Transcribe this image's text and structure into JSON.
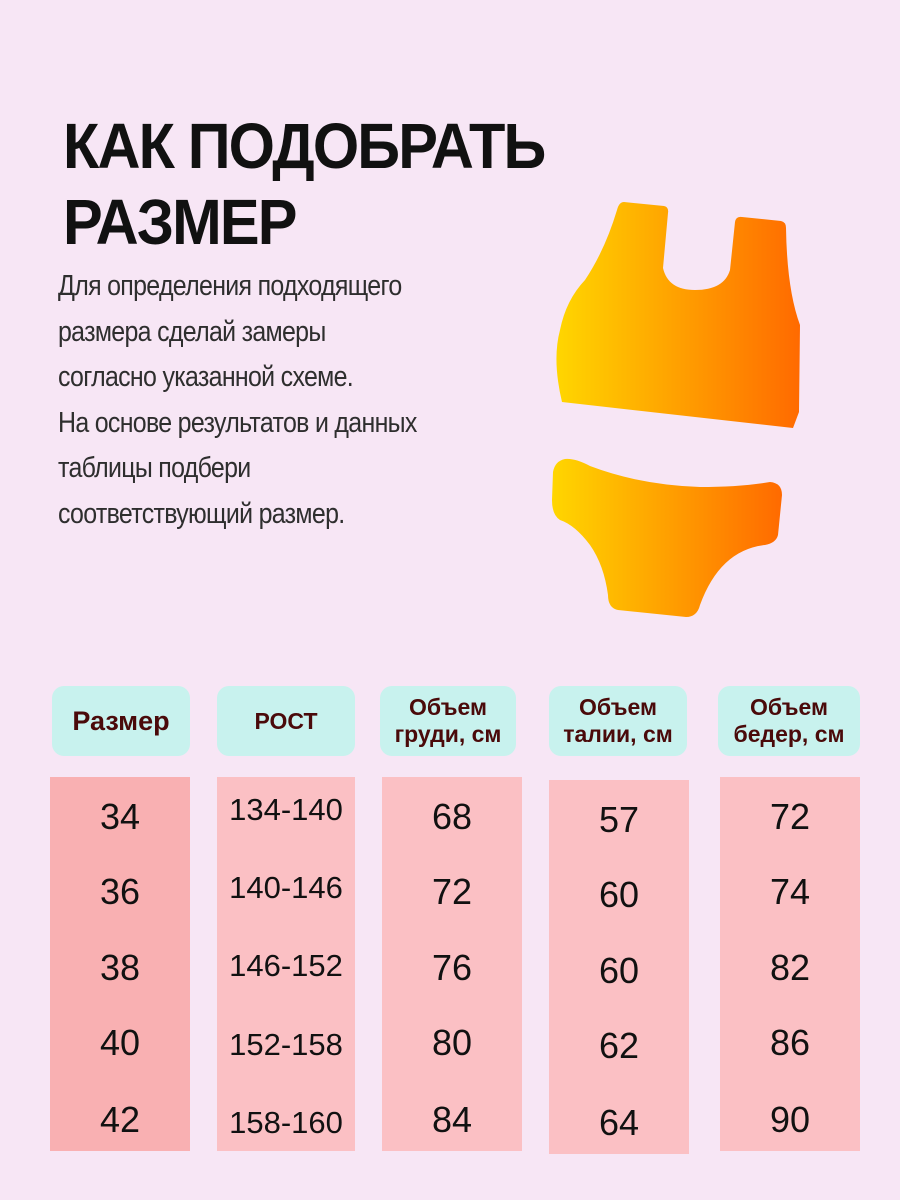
{
  "title": [
    "КАК ПОДОБРАТЬ",
    "РАЗМЕР"
  ],
  "description": [
    "Для определения подходящего",
    "размера сделай замеры",
    "согласно указанной схеме.",
    "На основе результатов и данных",
    "таблицы подбери",
    "соответствующий размер."
  ],
  "illustration": {
    "name": "bikini-icon",
    "gradient": [
      "#ffd600",
      "#ff6a00"
    ]
  },
  "colors": {
    "background": "#f7e6f5",
    "header": "#c8f2ee",
    "size_column": "#f9b0b2",
    "column": "#fbc0c4",
    "header_text": "#4a0a0a"
  },
  "table": {
    "headers": [
      {
        "line1": "Размер",
        "line2": ""
      },
      {
        "line1": "РОСТ",
        "line2": ""
      },
      {
        "line1": "Объем",
        "line2": "груди, см"
      },
      {
        "line1": "Объем",
        "line2": "талии, см"
      },
      {
        "line1": "Объем",
        "line2": "бедер, см"
      }
    ],
    "columns": [
      [
        "34",
        "36",
        "38",
        "40",
        "42"
      ],
      [
        "134-140",
        "140-146",
        "146-152",
        "152-158",
        "158-160"
      ],
      [
        "68",
        "72",
        "76",
        "80",
        "84"
      ],
      [
        "57",
        "60",
        "60",
        "62",
        "64"
      ],
      [
        "72",
        "74",
        "82",
        "86",
        "90"
      ]
    ]
  }
}
